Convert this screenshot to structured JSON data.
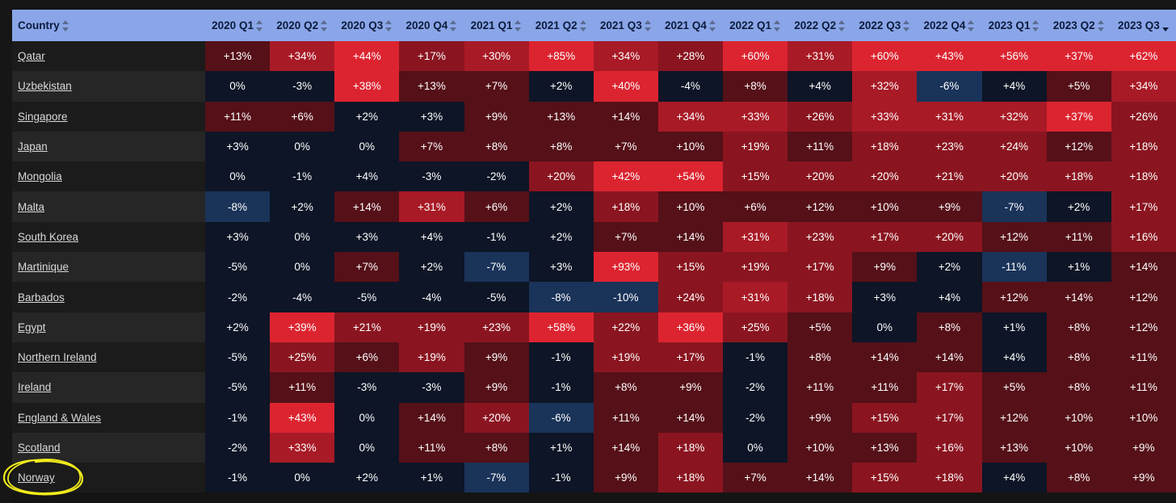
{
  "colors": {
    "header_bg": "#8aa6e8",
    "neutral_dark": "#0d1526",
    "blue_negative": "#1a3359",
    "red_strong": "#dc2430",
    "highlight": "#f2ec1c"
  },
  "icons": {
    "sort_unsorted": "sort-arrows-icon",
    "sort_desc": "sort-descending-icon"
  },
  "table": {
    "country_header": "Country",
    "columns": [
      "2020 Q1",
      "2020 Q2",
      "2020 Q3",
      "2020 Q4",
      "2021 Q1",
      "2021 Q2",
      "2021 Q3",
      "2021 Q4",
      "2022 Q1",
      "2022 Q2",
      "2022 Q3",
      "2022 Q4",
      "2023 Q1",
      "2023 Q2",
      "2023 Q3"
    ],
    "sorted_column": "2023 Q3",
    "sort_direction": "descending",
    "rows": [
      {
        "country": "Qatar",
        "values": [
          "+13%",
          "+34%",
          "+44%",
          "+17%",
          "+30%",
          "+85%",
          "+34%",
          "+28%",
          "+60%",
          "+31%",
          "+60%",
          "+43%",
          "+56%",
          "+37%",
          "+62%"
        ]
      },
      {
        "country": "Uzbekistan",
        "values": [
          "0%",
          "-3%",
          "+38%",
          "+13%",
          "+7%",
          "+2%",
          "+40%",
          "-4%",
          "+8%",
          "+4%",
          "+32%",
          "-6%",
          "+4%",
          "+5%",
          "+34%"
        ]
      },
      {
        "country": "Singapore",
        "values": [
          "+11%",
          "+6%",
          "+2%",
          "+3%",
          "+9%",
          "+13%",
          "+14%",
          "+34%",
          "+33%",
          "+26%",
          "+33%",
          "+31%",
          "+32%",
          "+37%",
          "+26%"
        ]
      },
      {
        "country": "Japan",
        "values": [
          "+3%",
          "0%",
          "0%",
          "+7%",
          "+8%",
          "+8%",
          "+7%",
          "+10%",
          "+19%",
          "+11%",
          "+18%",
          "+23%",
          "+24%",
          "+12%",
          "+18%"
        ]
      },
      {
        "country": "Mongolia",
        "values": [
          "0%",
          "-1%",
          "+4%",
          "-3%",
          "-2%",
          "+20%",
          "+42%",
          "+54%",
          "+15%",
          "+20%",
          "+20%",
          "+21%",
          "+20%",
          "+18%",
          "+18%"
        ]
      },
      {
        "country": "Malta",
        "values": [
          "-8%",
          "+2%",
          "+14%",
          "+31%",
          "+6%",
          "+2%",
          "+18%",
          "+10%",
          "+6%",
          "+12%",
          "+10%",
          "+9%",
          "-7%",
          "+2%",
          "+17%"
        ]
      },
      {
        "country": "South Korea",
        "values": [
          "+3%",
          "0%",
          "+3%",
          "+4%",
          "-1%",
          "+2%",
          "+7%",
          "+14%",
          "+31%",
          "+23%",
          "+17%",
          "+20%",
          "+12%",
          "+11%",
          "+16%"
        ]
      },
      {
        "country": "Martinique",
        "values": [
          "-5%",
          "0%",
          "+7%",
          "+2%",
          "-7%",
          "+3%",
          "+93%",
          "+15%",
          "+19%",
          "+17%",
          "+9%",
          "+2%",
          "-11%",
          "+1%",
          "+14%"
        ]
      },
      {
        "country": "Barbados",
        "values": [
          "-2%",
          "-4%",
          "-5%",
          "-4%",
          "-5%",
          "-8%",
          "-10%",
          "+24%",
          "+31%",
          "+18%",
          "+3%",
          "+4%",
          "+12%",
          "+14%",
          "+12%"
        ]
      },
      {
        "country": "Egypt",
        "values": [
          "+2%",
          "+39%",
          "+21%",
          "+19%",
          "+23%",
          "+58%",
          "+22%",
          "+36%",
          "+25%",
          "+5%",
          "0%",
          "+8%",
          "+1%",
          "+8%",
          "+12%"
        ]
      },
      {
        "country": "Northern Ireland",
        "values": [
          "-5%",
          "+25%",
          "+6%",
          "+19%",
          "+9%",
          "-1%",
          "+19%",
          "+17%",
          "-1%",
          "+8%",
          "+14%",
          "+14%",
          "+4%",
          "+8%",
          "+11%"
        ]
      },
      {
        "country": "Ireland",
        "values": [
          "-5%",
          "+11%",
          "-3%",
          "-3%",
          "+9%",
          "-1%",
          "+8%",
          "+9%",
          "-2%",
          "+11%",
          "+11%",
          "+17%",
          "+5%",
          "+8%",
          "+11%"
        ]
      },
      {
        "country": "England & Wales",
        "values": [
          "-1%",
          "+43%",
          "0%",
          "+14%",
          "+20%",
          "-6%",
          "+11%",
          "+14%",
          "-2%",
          "+9%",
          "+15%",
          "+17%",
          "+12%",
          "+10%",
          "+10%"
        ]
      },
      {
        "country": "Scotland",
        "values": [
          "-2%",
          "+33%",
          "0%",
          "+11%",
          "+8%",
          "+1%",
          "+14%",
          "+18%",
          "0%",
          "+10%",
          "+13%",
          "+16%",
          "+13%",
          "+10%",
          "+9%"
        ]
      },
      {
        "country": "Norway",
        "values": [
          "-1%",
          "0%",
          "+2%",
          "+1%",
          "-7%",
          "-1%",
          "+9%",
          "+18%",
          "+7%",
          "+14%",
          "+15%",
          "+18%",
          "+4%",
          "+8%",
          "+9%"
        ]
      }
    ],
    "highlighted_country": "Norway"
  }
}
